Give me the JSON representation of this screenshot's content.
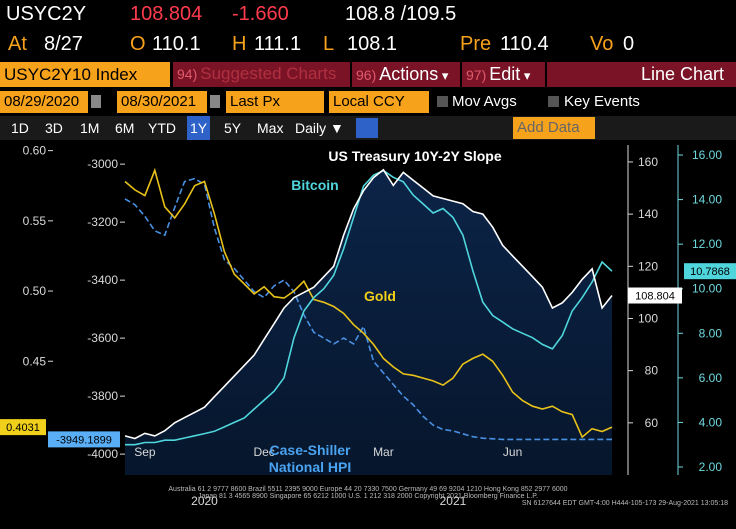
{
  "header": {
    "ticker": "USYC2Y",
    "last": "108.804",
    "change": "-1.660",
    "bid_ask": "108.8 /109.5"
  },
  "quote": [
    {
      "label": "At",
      "value": "8/27"
    },
    {
      "label": "O",
      "value": "110.1"
    },
    {
      "label": "H",
      "value": "111.1"
    },
    {
      "label": "L",
      "value": "108.1"
    },
    {
      "label": "Pre",
      "value": "110.4"
    },
    {
      "label": "Vo",
      "value": "0"
    }
  ],
  "security": "USYC2Y10 Index",
  "menu": [
    {
      "num": "94)",
      "label": "Suggested Charts"
    },
    {
      "num": "96)",
      "label": "Actions"
    },
    {
      "num": "97)",
      "label": "Edit"
    }
  ],
  "chart_type": "Line Chart",
  "settings": {
    "start": "08/29/2020",
    "end": "08/30/2021",
    "field": "Last Px",
    "currency": "Local CCY",
    "mov_avgs": "Mov Avgs",
    "key_events": "Key Events"
  },
  "periods": [
    "1D",
    "3D",
    "1M",
    "6M",
    "YTD",
    "1Y",
    "5Y",
    "Max"
  ],
  "selected_period": "1Y",
  "frequency": "Daily",
  "add_data": "Add Data",
  "chart_data": {
    "type": "line",
    "categories": [
      null,
      null,
      "Sep",
      null,
      null,
      null,
      null,
      null,
      null,
      null,
      null,
      null,
      null,
      null,
      "Dec",
      null,
      null,
      null,
      null,
      null,
      null,
      null,
      null,
      null,
      null,
      null,
      "Mar",
      null,
      null,
      null,
      null,
      null,
      null,
      null,
      null,
      null,
      null,
      null,
      null,
      "Jun",
      null,
      null,
      null,
      null,
      null,
      null,
      null,
      null,
      null,
      null
    ],
    "years": [
      null,
      null,
      null,
      null,
      null,
      null,
      null,
      null,
      "2020",
      null,
      null,
      null,
      null,
      null,
      null,
      null,
      null,
      null,
      null,
      null,
      null,
      null,
      null,
      null,
      null,
      null,
      null,
      null,
      null,
      null,
      null,
      null,
      null,
      "2021",
      null,
      null,
      null,
      null,
      null,
      null,
      null,
      null,
      null,
      null,
      null,
      null,
      null,
      null,
      null,
      null
    ],
    "annotations": [
      {
        "text": "US Treasury 10Y-2Y Slope",
        "color": "#ffffff"
      },
      {
        "text": "Bitcoin",
        "color": "#4fd6dc"
      },
      {
        "text": "Gold",
        "color": "#f0d01a"
      },
      {
        "text": "Case-Shiller",
        "color": "#4aa3f0"
      },
      {
        "text": "National HPI",
        "color": "#4aa3f0"
      }
    ],
    "ylim": [
      0.369,
      0.604
    ],
    "yticks": [
      {
        "value": 0.6,
        "label": "0.60"
      },
      {
        "value": 0.55,
        "label": "0.55"
      },
      {
        "value": 0.5,
        "label": "0.50"
      },
      {
        "value": 0.45,
        "label": "0.45"
      }
    ],
    "y3lim": [
      -4072,
      -2934
    ],
    "y3ticks": [
      -3000,
      -3200,
      -3400,
      -3600,
      -3800,
      -4000
    ],
    "y2lim": [
      40,
      166.5
    ],
    "y2ticks": [
      160,
      140,
      120,
      100,
      80,
      60
    ],
    "y4lim": [
      1.64,
      16.45
    ],
    "y4ticks": [
      {
        "value": 16,
        "label": "16.00"
      },
      {
        "value": 14,
        "label": "14.00"
      },
      {
        "value": 12,
        "label": "12.00"
      },
      {
        "value": 10,
        "label": "10.00"
      },
      {
        "value": 8,
        "label": "8.00"
      },
      {
        "value": 6,
        "label": "6.00"
      },
      {
        "value": 4,
        "label": "4.00"
      },
      {
        "value": 2,
        "label": "2.00"
      }
    ],
    "series": [
      {
        "name": "Case-Shiller National HPI",
        "color": "#4a90e2",
        "axis": "y3",
        "dashed": true,
        "values": [
          -3120,
          -3140,
          -3180,
          -3230,
          -3245,
          -3150,
          -3060,
          -3050,
          -3070,
          -3220,
          -3330,
          -3360,
          -3400,
          -3440,
          -3460,
          -3420,
          -3400,
          -3440,
          -3520,
          -3580,
          -3600,
          -3620,
          -3600,
          -3620,
          -3560,
          -3680,
          -3720,
          -3760,
          -3800,
          -3830,
          -3870,
          -3900,
          -3915,
          -3920,
          -3930,
          -3940,
          -3945,
          -3947,
          -3949.1899,
          -3949.1899,
          -3949.1899,
          -3949.1899,
          -3949.1899,
          -3949.1899,
          -3949.1899,
          -3949.1899,
          -3949.1899,
          -3949.1899,
          -3949.1899,
          -3949.1899
        ]
      },
      {
        "name": "Gold",
        "color": "#e8c21a",
        "axis": "y",
        "values": [
          0.578,
          0.572,
          0.568,
          0.586,
          0.56,
          0.552,
          0.562,
          0.575,
          0.578,
          0.555,
          0.528,
          0.512,
          0.505,
          0.498,
          0.503,
          0.496,
          0.495,
          0.5,
          0.507,
          0.494,
          0.492,
          0.489,
          0.484,
          0.476,
          0.47,
          0.462,
          0.452,
          0.446,
          0.441,
          0.44,
          0.438,
          0.436,
          0.433,
          0.438,
          0.448,
          0.452,
          0.455,
          0.45,
          0.44,
          0.428,
          0.422,
          0.418,
          0.416,
          0.418,
          0.414,
          0.412,
          0.396,
          0.402,
          0.4,
          0.4031
        ]
      },
      {
        "name": "Bitcoin",
        "color": "#4fd6dc",
        "axis": "y4",
        "values": [
          3.0,
          3.0,
          3.1,
          3.1,
          3.2,
          3.2,
          3.3,
          3.4,
          3.5,
          3.6,
          3.8,
          4.0,
          4.2,
          4.6,
          5.0,
          5.4,
          6.0,
          7.8,
          9.0,
          9.6,
          10.0,
          10.6,
          11.8,
          13.2,
          14.6,
          15.1,
          15.3,
          15.0,
          14.8,
          14.2,
          13.8,
          13.4,
          13.6,
          13.2,
          12.4,
          10.8,
          9.4,
          8.8,
          8.5,
          8.2,
          8.0,
          7.8,
          7.5,
          7.3,
          7.9,
          9.0,
          9.6,
          10.3,
          11.2,
          10.7868
        ]
      },
      {
        "name": "US Treasury 10Y-2Y Slope",
        "color": "#ffffff",
        "axis": "y2",
        "area": "#0c2448",
        "values": [
          55,
          54,
          56,
          55,
          57,
          60,
          62,
          64,
          66,
          70,
          74,
          78,
          82,
          86,
          92,
          98,
          104,
          108,
          110,
          112,
          116,
          120,
          132,
          142,
          149,
          154,
          157,
          151,
          156,
          153,
          150,
          147,
          146,
          145,
          144,
          141,
          140,
          135,
          128,
          124,
          120,
          116,
          112,
          104,
          106,
          110,
          115,
          119,
          104,
          108.804
        ]
      }
    ]
  },
  "footer": [
    "Australia 61 2 9777 8600 Brazil 5511 2395 9000 Europe 44 20 7330 7500 Germany 49 69 9204 1210 Hong Kong 852 2977 6000",
    "Japan 81 3 4565 8900 Singapore 65 6212 1000 U.S. 1 212 318 2000 Copyright 2021 Bloomberg Finance L.P.",
    "SN 6127644 EDT GMT-4:00 H444-105-173 29-Aug-2021 13:05:18"
  ]
}
